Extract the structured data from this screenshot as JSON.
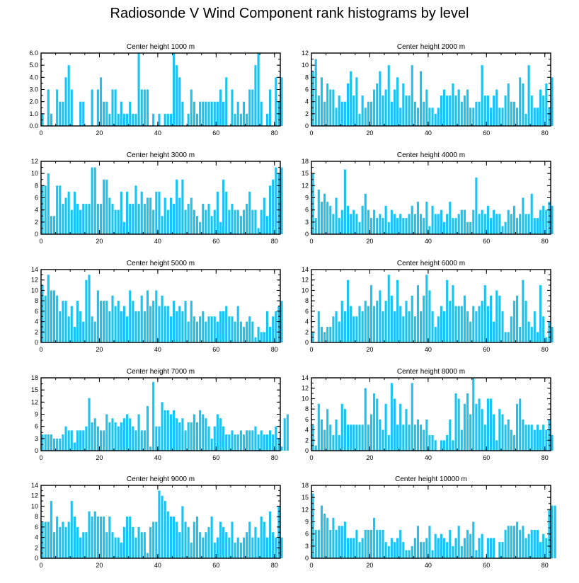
{
  "title": "Radiosonde V Wind Component rank histograms by level",
  "bar_color": "#1ac3f2",
  "chart_data": [
    {
      "type": "bar",
      "title": "Center height 1000 m",
      "ylim": [
        0,
        6
      ],
      "yticks": [
        "0.0",
        "1.0",
        "2.0",
        "3.0",
        "4.0",
        "5.0",
        "6.0"
      ],
      "xlim": [
        0,
        82
      ],
      "xticks": [
        "0",
        "20",
        "40",
        "60",
        "80"
      ],
      "values": [
        1,
        0,
        3,
        1,
        0,
        3,
        2,
        2,
        4,
        5,
        3,
        0,
        0,
        2,
        2,
        0,
        0,
        3,
        0,
        3,
        4,
        2,
        2,
        1,
        3,
        3,
        1,
        2,
        1,
        1,
        2,
        1,
        1,
        6,
        3,
        3,
        3,
        0,
        1,
        0,
        1,
        0,
        1,
        1,
        1,
        6,
        5,
        4,
        2,
        0,
        1,
        3,
        2,
        1,
        2,
        2,
        2,
        2,
        2,
        2,
        2,
        3,
        2,
        4,
        0,
        3,
        1,
        2,
        1,
        2,
        1,
        3,
        3,
        5,
        6,
        2,
        0,
        1,
        3,
        0,
        4,
        2,
        4
      ]
    },
    {
      "type": "bar",
      "title": "Center height 2000 m",
      "ylim": [
        0,
        12
      ],
      "yticks": [
        "0",
        "2",
        "4",
        "6",
        "8",
        "10",
        "12"
      ],
      "xlim": [
        0,
        82
      ],
      "xticks": [
        "0",
        "20",
        "40",
        "60",
        "80"
      ],
      "values": [
        9,
        11,
        5,
        8,
        4,
        7,
        6,
        6,
        3,
        5,
        4,
        4,
        7,
        9,
        5,
        8,
        2,
        5,
        3,
        4,
        4,
        6,
        7,
        9,
        5,
        6,
        10,
        4,
        6,
        8,
        3,
        7,
        5,
        5,
        10,
        4,
        3,
        9,
        4,
        6,
        3,
        3,
        2,
        3,
        5,
        6,
        5,
        5,
        7,
        5,
        6,
        4,
        5,
        6,
        3,
        3,
        4,
        4,
        10,
        5,
        5,
        3,
        5,
        6,
        3,
        3,
        5,
        7,
        4,
        4,
        3,
        8,
        7,
        2,
        10,
        5,
        3,
        3,
        6,
        5,
        7,
        3,
        8
      ]
    },
    {
      "type": "bar",
      "title": "Center height 3000 m",
      "ylim": [
        0,
        12
      ],
      "yticks": [
        "0",
        "2",
        "4",
        "6",
        "8",
        "10",
        "12"
      ],
      "xlim": [
        0,
        82
      ],
      "xticks": [
        "0",
        "20",
        "40",
        "60",
        "80"
      ],
      "values": [
        8,
        8,
        10,
        3,
        3,
        8,
        8,
        5,
        6,
        7,
        4,
        7,
        5,
        4,
        5,
        5,
        5,
        11,
        11,
        5,
        5,
        9,
        9,
        6,
        5,
        4,
        4,
        7,
        2,
        7,
        5,
        5,
        8,
        5,
        7,
        5,
        6,
        6,
        4,
        7,
        7,
        3,
        6,
        4,
        6,
        5,
        9,
        6,
        9,
        4,
        5,
        6,
        4,
        3,
        2,
        5,
        4,
        5,
        3,
        4,
        7,
        2,
        9,
        7,
        4,
        5,
        4,
        4,
        3,
        4,
        5,
        7,
        4,
        4,
        1,
        4,
        6,
        3,
        8,
        9,
        11,
        10,
        11
      ]
    },
    {
      "type": "bar",
      "title": "Center height 4000 m",
      "ylim": [
        0,
        18
      ],
      "yticks": [
        "0",
        "3",
        "6",
        "9",
        "12",
        "15",
        "18"
      ],
      "xlim": [
        0,
        82
      ],
      "xticks": [
        "0",
        "20",
        "40",
        "60",
        "80"
      ],
      "values": [
        15,
        4,
        11,
        8,
        10,
        8,
        7,
        5,
        9,
        4,
        6,
        16,
        7,
        5,
        6,
        5,
        3,
        7,
        10,
        6,
        4,
        6,
        4,
        5,
        4,
        7,
        3,
        6,
        5,
        4,
        5,
        4,
        4,
        5,
        7,
        5,
        8,
        5,
        4,
        8,
        2,
        7,
        5,
        5,
        6,
        3,
        5,
        8,
        4,
        4,
        5,
        6,
        6,
        3,
        3,
        6,
        14,
        5,
        6,
        5,
        7,
        4,
        6,
        5,
        5,
        2,
        3,
        6,
        5,
        7,
        4,
        5,
        9,
        5,
        5,
        10,
        4,
        4,
        6,
        7,
        6,
        8,
        7
      ]
    },
    {
      "type": "bar",
      "title": "Center height 5000 m",
      "ylim": [
        0,
        14
      ],
      "yticks": [
        "0",
        "2",
        "4",
        "6",
        "8",
        "10",
        "12",
        "14"
      ],
      "xlim": [
        0,
        82
      ],
      "xticks": [
        "0",
        "20",
        "40",
        "60",
        "80"
      ],
      "values": [
        11,
        9,
        13,
        10,
        10,
        9,
        6,
        8,
        8,
        5,
        7,
        3,
        8,
        6,
        4,
        12,
        13,
        5,
        4,
        10,
        8,
        8,
        8,
        6,
        9,
        7,
        8,
        6,
        7,
        5,
        10,
        8,
        6,
        6,
        9,
        6,
        10,
        7,
        8,
        10,
        7,
        9,
        7,
        7,
        5,
        8,
        6,
        7,
        6,
        8,
        4,
        8,
        5,
        4,
        5,
        6,
        4,
        5,
        5,
        5,
        4,
        6,
        6,
        7,
        5,
        5,
        4,
        7,
        4,
        3,
        4,
        5,
        4,
        1,
        3,
        2,
        2,
        6,
        3,
        5,
        6,
        7,
        8
      ]
    },
    {
      "type": "bar",
      "title": "Center height 6000 m",
      "ylim": [
        0,
        14
      ],
      "yticks": [
        "0",
        "2",
        "4",
        "6",
        "8",
        "10",
        "12",
        "14"
      ],
      "xlim": [
        0,
        82
      ],
      "xticks": [
        "0",
        "20",
        "40",
        "60",
        "80"
      ],
      "values": [
        2,
        0,
        6,
        3,
        2,
        3,
        3,
        5,
        6,
        4,
        8,
        6,
        12,
        7,
        5,
        5,
        7,
        6,
        8,
        7,
        11,
        7,
        8,
        10,
        6,
        8,
        13,
        9,
        6,
        12,
        7,
        5,
        8,
        6,
        9,
        5,
        11,
        6,
        9,
        13,
        10,
        6,
        3,
        5,
        7,
        6,
        12,
        8,
        11,
        7,
        7,
        7,
        9,
        6,
        4,
        7,
        6,
        7,
        8,
        11,
        7,
        9,
        4,
        10,
        9,
        6,
        2,
        2,
        5,
        8,
        9,
        3,
        12,
        8,
        4,
        3,
        6,
        2,
        11,
        5,
        1,
        4,
        3
      ]
    },
    {
      "type": "bar",
      "title": "Center height 7000 m",
      "ylim": [
        0,
        18
      ],
      "yticks": [
        "0",
        "3",
        "6",
        "9",
        "12",
        "15",
        "18"
      ],
      "xlim": [
        0,
        82
      ],
      "xticks": [
        "0",
        "20",
        "40",
        "60",
        "80"
      ],
      "values": [
        4,
        4,
        4,
        4,
        3,
        3,
        3,
        4,
        6,
        5,
        5,
        2,
        5,
        5,
        5,
        6,
        13,
        7,
        8,
        6,
        5,
        5,
        9,
        7,
        8,
        7,
        6,
        7,
        8,
        9,
        8,
        6,
        5,
        9,
        5,
        5,
        11,
        1,
        17,
        6,
        6,
        12,
        10,
        10,
        9,
        10,
        8,
        7,
        8,
        5,
        7,
        7,
        9,
        7,
        10,
        9,
        8,
        6,
        3,
        6,
        9,
        8,
        6,
        4,
        4,
        5,
        4,
        4,
        5,
        4,
        5,
        5,
        5,
        6,
        4,
        5,
        4,
        4,
        5,
        4,
        6,
        3,
        1,
        8,
        9
      ]
    },
    {
      "type": "bar",
      "title": "Center height 8000 m",
      "ylim": [
        0,
        14
      ],
      "yticks": [
        "0",
        "2",
        "4",
        "6",
        "8",
        "10",
        "12",
        "14"
      ],
      "xlim": [
        0,
        82
      ],
      "xticks": [
        "0",
        "20",
        "40",
        "60",
        "80"
      ],
      "values": [
        5,
        1,
        9,
        6,
        4,
        8,
        5,
        3,
        6,
        3,
        9,
        8,
        5,
        5,
        5,
        5,
        5,
        5,
        12,
        5,
        7,
        11,
        10,
        6,
        4,
        9,
        3,
        13,
        10,
        5,
        9,
        5,
        8,
        5,
        13,
        5,
        6,
        5,
        4,
        6,
        3,
        3,
        2,
        0,
        2,
        2,
        3,
        6,
        2,
        11,
        10,
        4,
        9,
        11,
        7,
        14,
        9,
        10,
        8,
        5,
        10,
        10,
        7,
        2,
        8,
        7,
        5,
        6,
        4,
        3,
        9,
        10,
        6,
        5,
        5,
        5,
        4,
        5,
        4,
        5,
        4,
        6,
        3
      ]
    },
    {
      "type": "bar",
      "title": "Center height 9000 m",
      "ylim": [
        0,
        14
      ],
      "yticks": [
        "0",
        "2",
        "4",
        "6",
        "8",
        "10",
        "12",
        "14"
      ],
      "xlim": [
        0,
        82
      ],
      "xticks": [
        "0",
        "20",
        "40",
        "60",
        "80"
      ],
      "values": [
        7,
        7,
        7,
        11,
        5,
        8,
        6,
        7,
        6,
        7,
        11,
        8,
        6,
        4,
        5,
        5,
        9,
        8,
        9,
        8,
        8,
        8,
        5,
        8,
        5,
        4,
        4,
        3,
        6,
        8,
        8,
        6,
        4,
        6,
        5,
        5,
        1,
        6,
        7,
        7,
        13,
        12,
        11,
        9,
        8,
        8,
        7,
        5,
        10,
        7,
        6,
        3,
        7,
        8,
        5,
        4,
        5,
        6,
        8,
        3,
        4,
        7,
        6,
        5,
        4,
        7,
        3,
        4,
        3,
        4,
        5,
        7,
        4,
        6,
        4,
        8,
        7,
        4,
        9,
        5,
        4,
        10,
        4
      ]
    },
    {
      "type": "bar",
      "title": "Center height 10000 m",
      "ylim": [
        0,
        18
      ],
      "yticks": [
        "0",
        "3",
        "6",
        "9",
        "12",
        "15",
        "18"
      ],
      "xlim": [
        0,
        82
      ],
      "xticks": [
        "0",
        "20",
        "40",
        "60",
        "80"
      ],
      "values": [
        16,
        7,
        7,
        13,
        11,
        10,
        7,
        10,
        7,
        8,
        8,
        9,
        5,
        5,
        5,
        7,
        4,
        5,
        7,
        7,
        7,
        10,
        7,
        7,
        7,
        4,
        3,
        5,
        4,
        5,
        7,
        4,
        2,
        2,
        3,
        5,
        8,
        4,
        4,
        5,
        8,
        2,
        6,
        5,
        6,
        5,
        4,
        7,
        3,
        5,
        8,
        3,
        5,
        7,
        6,
        9,
        2,
        5,
        6,
        0,
        5,
        5,
        5,
        0,
        4,
        4,
        7,
        8,
        8,
        8,
        9,
        7,
        8,
        5,
        6,
        7,
        7,
        7,
        4,
        6,
        5,
        12,
        13,
        13
      ]
    }
  ]
}
